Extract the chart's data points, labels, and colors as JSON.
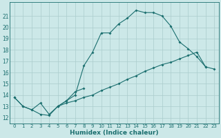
{
  "xlabel": "Humidex (Indice chaleur)",
  "bg_color": "#cce8e8",
  "grid_color": "#aacccc",
  "line_color": "#1a6e6e",
  "xlim": [
    -0.5,
    23.5
  ],
  "ylim": [
    11.5,
    22.2
  ],
  "xticks": [
    0,
    1,
    2,
    3,
    4,
    5,
    6,
    7,
    8,
    9,
    10,
    11,
    12,
    13,
    14,
    15,
    16,
    17,
    18,
    19,
    20,
    21,
    22,
    23
  ],
  "yticks": [
    12,
    13,
    14,
    15,
    16,
    17,
    18,
    19,
    20,
    21
  ],
  "line1_x": [
    0,
    1,
    2,
    3,
    4,
    5,
    6,
    7,
    8,
    9,
    10,
    11,
    12,
    13,
    14,
    15,
    16,
    17,
    18,
    19,
    20,
    21,
    22
  ],
  "line1_y": [
    13.8,
    13.0,
    12.7,
    13.3,
    12.3,
    13.0,
    13.5,
    14.0,
    16.6,
    17.8,
    19.5,
    19.5,
    20.3,
    20.8,
    21.5,
    21.3,
    21.3,
    21.0,
    20.1,
    18.7,
    18.1,
    17.4,
    16.5
  ],
  "line2_x": [
    0,
    1,
    2,
    3,
    4,
    5,
    6,
    7,
    8
  ],
  "line2_y": [
    13.8,
    13.0,
    12.7,
    12.3,
    12.2,
    13.0,
    13.5,
    14.3,
    14.6
  ],
  "line3_x": [
    5,
    6,
    7,
    8,
    9,
    10,
    11,
    12,
    13,
    14,
    15,
    16,
    17,
    18,
    19,
    20,
    21,
    22,
    23
  ],
  "line3_y": [
    13.0,
    13.3,
    13.5,
    13.8,
    14.0,
    14.4,
    14.7,
    15.0,
    15.4,
    15.7,
    16.1,
    16.4,
    16.7,
    16.9,
    17.2,
    17.5,
    17.8,
    16.5,
    16.3
  ],
  "marker_size": 2.0,
  "line_width": 0.8,
  "tick_fontsize": 5.0,
  "xlabel_fontsize": 6.5
}
